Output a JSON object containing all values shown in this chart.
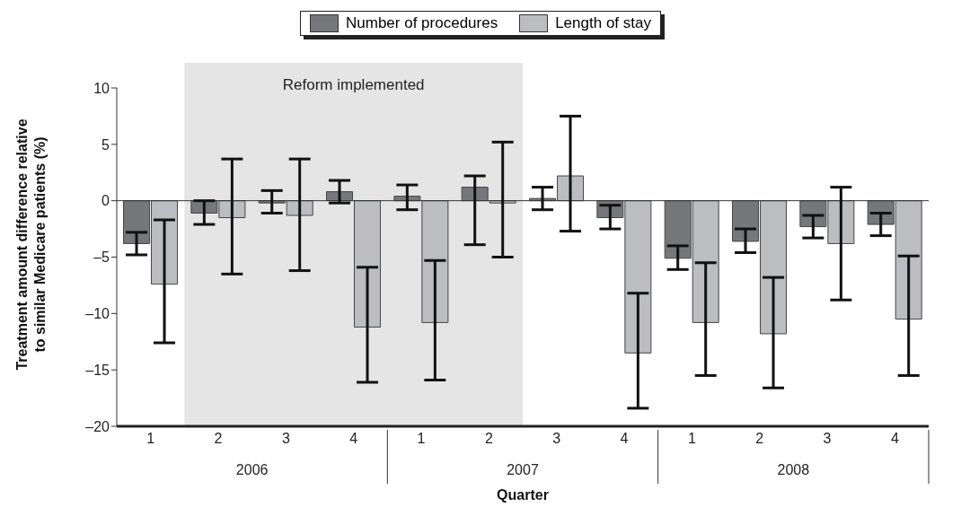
{
  "chart_data": {
    "type": "bar",
    "ylabel": "Treatment amount difference relative to similar Medicare patients (%)",
    "xlabel": "Quarter",
    "categories": [
      "1",
      "2",
      "3",
      "4",
      "1",
      "2",
      "3",
      "4",
      "1",
      "2",
      "3",
      "4"
    ],
    "annotations": [
      "Reform implemented",
      "2006",
      "2007",
      "2008"
    ],
    "series": [
      {
        "name": "Number of procedures",
        "color": "#76777b",
        "values": [
          -3.8,
          -1.1,
          -0.2,
          0.8,
          0.4,
          1.2,
          0.2,
          -1.5,
          -5.1,
          -3.6,
          -2.3,
          -2.1
        ],
        "errors": [
          [
            -4.8,
            -2.8
          ],
          [
            -2.1,
            0
          ],
          [
            -1.1,
            0.9
          ],
          [
            -0.2,
            1.8
          ],
          [
            -0.8,
            1.4
          ],
          [
            -3.9,
            2.2
          ],
          [
            -0.8,
            1.2
          ],
          [
            -2.5,
            -0.4
          ],
          [
            -6.1,
            -4.0
          ],
          [
            -4.6,
            -2.5
          ],
          [
            -3.3,
            -1.3
          ],
          [
            -3.1,
            -1.1
          ]
        ]
      },
      {
        "name": "Length of stay",
        "color": "#bcbdc1",
        "values": [
          -7.4,
          -1.5,
          -1.3,
          -11.2,
          -10.8,
          -0.2,
          2.2,
          -13.5,
          -10.8,
          -11.8,
          -3.8,
          -10.5
        ],
        "errors": [
          [
            -12.6,
            -1.7
          ],
          [
            -6.5,
            3.7
          ],
          [
            -6.2,
            3.7
          ],
          [
            -16.1,
            -5.9
          ],
          [
            -15.9,
            -5.3
          ],
          [
            -5.0,
            5.2
          ],
          [
            -2.7,
            7.5
          ],
          [
            -18.4,
            -8.2
          ],
          [
            -15.5,
            -5.5
          ],
          [
            -16.6,
            -6.8
          ],
          [
            -8.8,
            1.2
          ],
          [
            -15.5,
            -4.9
          ]
        ]
      }
    ],
    "ylim": [
      -20,
      10
    ],
    "yticks": [
      10,
      5,
      0,
      {
        "value": -5,
        "label": "–5"
      },
      {
        "value": -10,
        "label": "–10"
      },
      {
        "value": -15,
        "label": "–15"
      },
      {
        "value": -20,
        "label": "–20"
      }
    ],
    "legend": "top"
  }
}
